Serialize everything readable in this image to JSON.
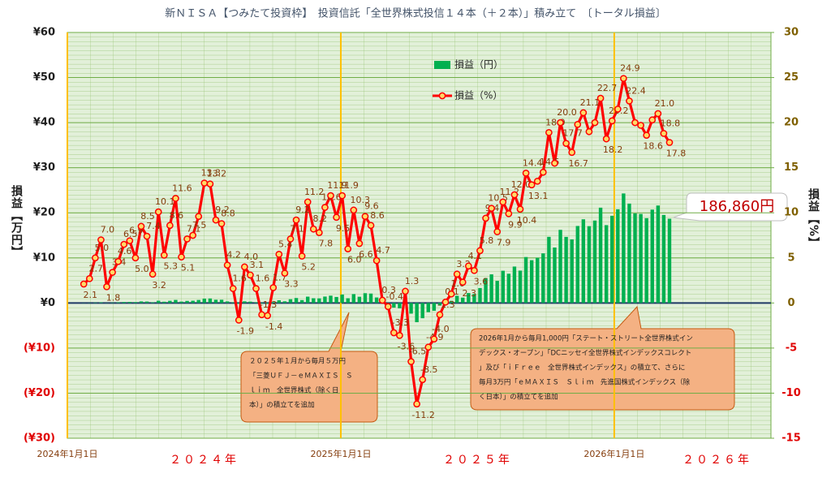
{
  "chart_data": {
    "type": "combo",
    "title": "新ＮＩＳＡ【つみたて投資枠】　投資信託「全世界株式投信１４本（＋２本）」積み立て　〔トータル損益〕",
    "x": [
      2024.06,
      2024.081,
      2024.102,
      2024.123,
      2024.144,
      2024.165,
      2024.186,
      2024.207,
      2024.228,
      2024.249,
      2024.27,
      2024.291,
      2024.312,
      2024.333,
      2024.354,
      2024.375,
      2024.396,
      2024.417,
      2024.438,
      2024.459,
      2024.48,
      2024.501,
      2024.522,
      2024.543,
      2024.564,
      2024.585,
      2024.606,
      2024.627,
      2024.648,
      2024.669,
      2024.69,
      2024.711,
      2024.732,
      2024.753,
      2024.774,
      2024.795,
      2024.816,
      2024.837,
      2024.858,
      2024.879,
      2024.9,
      2024.921,
      2024.942,
      2024.963,
      2024.984,
      2025.005,
      2025.026,
      2025.047,
      2025.068,
      2025.089,
      2025.11,
      2025.131,
      2025.152,
      2025.173,
      2025.194,
      2025.215,
      2025.236,
      2025.257,
      2025.278,
      2025.299,
      2025.32,
      2025.341,
      2025.362,
      2025.383,
      2025.404,
      2025.425,
      2025.446,
      2025.467,
      2025.488,
      2025.509,
      2025.53,
      2025.551,
      2025.572,
      2025.593,
      2025.614,
      2025.635,
      2025.656,
      2025.677,
      2025.698,
      2025.719,
      2025.74,
      2025.761,
      2025.782,
      2025.803,
      2025.824,
      2025.845,
      2025.866,
      2025.887,
      2025.908,
      2025.929,
      2025.95,
      2025.971,
      2025.992,
      2026.013,
      2026.034,
      2026.055,
      2026.076,
      2026.097,
      2026.118,
      2026.139,
      2026.16,
      2026.181,
      2026.202
    ],
    "xlim": [
      2024,
      2026.573
    ],
    "xticks": [
      {
        "value": 2024,
        "label": "2024年1月1日"
      },
      {
        "value": 2025,
        "label": "2025年1月1日"
      },
      {
        "value": 2026,
        "label": "2026年1月1日"
      }
    ],
    "year_labels": [
      "２０２４年",
      "２０２５年",
      "２０２６年"
    ],
    "ylim": [
      -30,
      60
    ],
    "yticks": [
      {
        "value": 60,
        "label": "¥60"
      },
      {
        "value": 50,
        "label": "¥50"
      },
      {
        "value": 40,
        "label": "¥40"
      },
      {
        "value": 30,
        "label": "¥30"
      },
      {
        "value": 20,
        "label": "¥20"
      },
      {
        "value": 10,
        "label": "¥10"
      },
      {
        "value": 0,
        "label": "¥0"
      },
      {
        "value": -10,
        "label": "(¥10)"
      },
      {
        "value": -20,
        "label": "(¥20)"
      },
      {
        "value": -30,
        "label": "(¥30)"
      }
    ],
    "y2lim": [
      -15,
      30
    ],
    "y2ticks": [
      30,
      25,
      20,
      15,
      10,
      5,
      0,
      -5,
      -10,
      -15
    ],
    "ylabel": "損益【万円】",
    "y2label": "損益【%】",
    "grid": true,
    "series": [
      {
        "name": "損益（円）",
        "type": "bar",
        "color": "#00b050",
        "values": [
          0.03,
          0.04,
          0.09,
          0.14,
          0.04,
          0.09,
          0.14,
          0.21,
          0.24,
          0.19,
          0.35,
          0.32,
          0.15,
          0.5,
          0.28,
          0.48,
          0.68,
          0.31,
          0.46,
          0.5,
          0.67,
          0.97,
          1.0,
          0.72,
          0.72,
          0.35,
          0.14,
          -0.17,
          0.37,
          0.3,
          0.16,
          -0.13,
          -0.15,
          0.18,
          0.6,
          0.37,
          0.83,
          1.1,
          0.64,
          1.4,
          1.05,
          1.02,
          1.42,
          1.63,
          1.33,
          1.87,
          1.05,
          1.97,
          1.38,
          2.17,
          2.09,
          1.22,
          0.08,
          -0.12,
          -1.03,
          -1.19,
          0.45,
          -2.36,
          -4.26,
          -3.38,
          -2.03,
          -1.73,
          -0.58,
          0.05,
          0.48,
          1.6,
          1.19,
          2.2,
          1.99,
          3.31,
          5.52,
          6.35,
          4.91,
          7.15,
          6.49,
          8.08,
          7.18,
          10.19,
          9.49,
          10.02,
          11.01,
          14.67,
          12.3,
          16.22,
          14.66,
          14.11,
          17.08,
          18.56,
          17.04,
          18.28,
          21.14,
          17.26,
          19.34,
          20.78,
          24.29,
          22.05,
          19.87,
          19.75,
          18.81,
          20.71,
          21.62,
          19.52,
          18.686
        ],
        "value_labels": [
          null,
          null,
          null,
          null,
          null,
          null,
          null,
          null,
          null,
          null,
          null,
          null,
          null,
          null,
          null,
          null,
          null,
          null,
          null,
          null,
          null,
          null,
          null,
          null,
          null,
          null,
          null,
          null,
          null,
          null,
          null,
          null,
          null,
          null,
          null,
          null,
          null,
          null,
          null,
          null,
          null,
          null,
          null,
          null,
          null,
          null,
          null,
          null,
          null,
          null,
          null,
          null,
          null,
          null,
          null,
          null,
          null,
          null,
          null,
          null,
          null,
          null,
          null,
          null,
          null,
          null,
          null,
          null,
          null,
          null,
          null,
          null,
          null,
          null,
          null,
          null,
          null,
          null,
          null,
          null,
          null,
          null,
          null,
          null,
          null,
          null,
          null,
          null,
          null,
          null,
          null,
          null,
          null,
          null,
          null,
          null,
          null,
          null,
          null,
          null,
          null,
          null,
          "186,860円"
        ]
      },
      {
        "name": "損益（%）",
        "type": "line",
        "axis": "y2",
        "color": "#ff0000",
        "marker_color": "#ffd966",
        "values": [
          2.1,
          2.7,
          5.0,
          7.0,
          1.8,
          3.4,
          4.6,
          6.5,
          6.9,
          5.0,
          8.5,
          7.4,
          3.2,
          10.1,
          5.3,
          8.6,
          11.6,
          5.1,
          7.1,
          7.5,
          9.6,
          13.3,
          13.2,
          9.2,
          8.8,
          4.2,
          1.6,
          -1.9,
          4.0,
          3.1,
          1.6,
          -1.3,
          -1.4,
          1.7,
          5.4,
          3.3,
          7.1,
          9.2,
          5.2,
          11.2,
          8.2,
          7.8,
          10.6,
          11.9,
          9.5,
          11.9,
          6.0,
          10.3,
          6.6,
          9.6,
          8.6,
          4.7,
          0.3,
          -0.4,
          -3.3,
          -3.6,
          1.3,
          -6.5,
          -11.2,
          -8.5,
          -4.9,
          -4.0,
          -1.3,
          0.1,
          1.0,
          3.2,
          2.3,
          4.1,
          3.6,
          5.8,
          9.4,
          10.5,
          7.9,
          11.2,
          9.9,
          12.0,
          10.4,
          14.4,
          13.1,
          13.5,
          14.5,
          18.9,
          15.5,
          20.0,
          17.7,
          16.7,
          19.8,
          21.1,
          19.0,
          20.0,
          22.7,
          18.2,
          20.2,
          21.5,
          24.9,
          22.4,
          20.0,
          19.7,
          18.6,
          20.3,
          21.0,
          18.8,
          17.8
        ],
        "value_labels": [
          "2.1",
          "2.7",
          "5.0",
          "7.0",
          "1.8",
          "3.4",
          "4.6",
          "6.5",
          "6.9",
          "5.0",
          "8.5",
          "7.4",
          "3.2",
          "10.1",
          "5.3",
          "8.6",
          "11.6",
          "5.1",
          "7.1",
          "7.5",
          null,
          "13.3",
          "13.2",
          "9.2",
          "8.8",
          "4.2",
          "1.6",
          "-1.9",
          "4.0",
          "3.1",
          "1.6",
          "-1.3",
          "-1.4",
          "1.7",
          "5.4",
          "3.3",
          "7.1",
          "9.2",
          "5.2",
          "11.2",
          "8.2",
          "7.8",
          "10.6",
          "11.9",
          "9.5",
          "11.9",
          "6.0",
          "10.3",
          "6.6",
          "9.6",
          "8.6",
          "4.7",
          "0.3",
          "-0.4",
          "-3.3",
          "-3.6",
          "1.3",
          "-6.5",
          "-11.2",
          "-8.5",
          "-4.9",
          "-4.0",
          "-1.3",
          "0.1",
          "1.0",
          "3.2",
          "2.3",
          "4.1",
          "3.6",
          "5.8",
          "9.4",
          "10.5",
          "7.9",
          "11.2",
          "9.9",
          "12.0",
          "10.4",
          "14.4",
          "13.1",
          null,
          "14.5",
          "18.9",
          null,
          "20.0",
          "17.7",
          "16.7",
          null,
          "21.1",
          null,
          null,
          "22.7",
          "18.2",
          "20.2",
          null,
          "24.9",
          "22.4",
          null,
          null,
          "18.6",
          null,
          "21.0",
          "18.8",
          "17.8"
        ]
      }
    ],
    "annotations": [
      {
        "lines": [
          "２０２５年１月から毎月５万円",
          "「三菱ＵＦＪ－ｅＭＡＸＩＳ　Ｓ",
          "ｌｉｍ　全世界株式（除く日",
          "本）」の積立てを追加"
        ]
      },
      {
        "lines": [
          "2026年1月から毎月1,000円「ステート・ストリート全世界株式イン",
          "デックス・オープン」「DCニッセイ全世界株式インデックスコレクト",
          "」及び「ｉＦｒｅｅ　全世界株式インデックス」の積立て、さらに",
          "毎月3万円「ｅＭＡＸＩＳ　Ｓｌｉｍ　先進国株式インデックス（除",
          "く日本）」の積立てを追加"
        ]
      }
    ]
  }
}
